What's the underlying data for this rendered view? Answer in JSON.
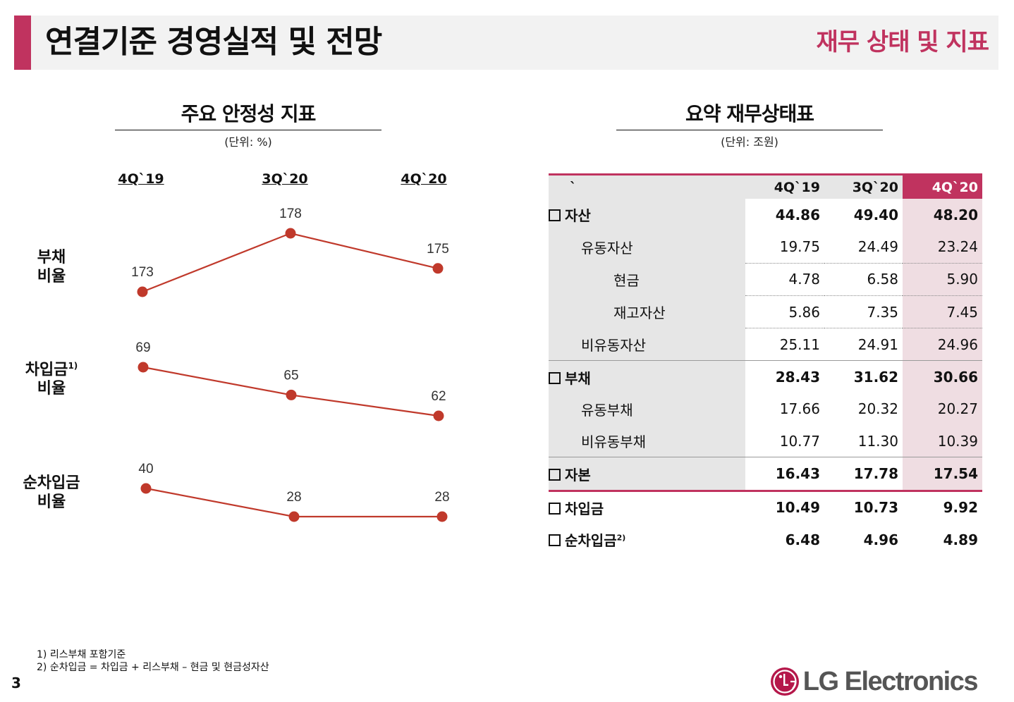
{
  "header": {
    "title": "연결기준 경영실적 및 전망",
    "section": "재무 상태 및 지표",
    "accent_color": "#c0335f"
  },
  "left_panel": {
    "title": "주요 안정성 지표",
    "unit": "(단위: %)",
    "periods": [
      "4Q`19",
      "3Q`20",
      "4Q`20"
    ]
  },
  "chart_data": {
    "type": "line",
    "title": "주요 안정성 지표",
    "unit": "(단위: %)",
    "categories": [
      "4Q`19",
      "3Q`20",
      "4Q`20"
    ],
    "series": [
      {
        "name": "부채 비율",
        "label_line1": "부채",
        "label_line2": "비율",
        "values": [
          173,
          178,
          175
        ]
      },
      {
        "name": "차입금 비율",
        "label_line1": "차입금",
        "label_sup": "1)",
        "label_line2": "비율",
        "values": [
          69,
          65,
          62
        ]
      },
      {
        "name": "순차입금 비율",
        "label_line1": "순차입금",
        "label_line2": "비율",
        "values": [
          40,
          28,
          28
        ]
      }
    ],
    "line_color": "#c0392b",
    "marker_color": "#c0392b"
  },
  "right_panel": {
    "title": "요약 재무상태표",
    "unit": "(단위: 조원)",
    "corner": "`",
    "columns": [
      "4Q`19",
      "3Q`20",
      "4Q`20"
    ],
    "rows": {
      "assets": {
        "label": "자산",
        "values": [
          "44.86",
          "49.40",
          "48.20"
        ]
      },
      "current_assets": {
        "label": "유동자산",
        "values": [
          "19.75",
          "24.49",
          "23.24"
        ]
      },
      "cash": {
        "label": "현금",
        "values": [
          "4.78",
          "6.58",
          "5.90"
        ]
      },
      "inventory": {
        "label": "재고자산",
        "values": [
          "5.86",
          "7.35",
          "7.45"
        ]
      },
      "noncurrent_assets": {
        "label": "비유동자산",
        "values": [
          "25.11",
          "24.91",
          "24.96"
        ]
      },
      "liabilities": {
        "label": "부채",
        "values": [
          "28.43",
          "31.62",
          "30.66"
        ]
      },
      "current_liab": {
        "label": "유동부채",
        "values": [
          "17.66",
          "20.32",
          "20.27"
        ]
      },
      "noncurrent_liab": {
        "label": "비유동부채",
        "values": [
          "10.77",
          "11.30",
          "10.39"
        ]
      },
      "equity": {
        "label": "자본",
        "values": [
          "16.43",
          "17.78",
          "17.54"
        ]
      },
      "borrowings": {
        "label": "차입금",
        "values": [
          "10.49",
          "10.73",
          "9.92"
        ]
      },
      "net_borrowings": {
        "label": "순차입금",
        "sup": "2)",
        "values": [
          "6.48",
          "4.96",
          "4.89"
        ]
      }
    }
  },
  "footnotes": [
    "1) 리스부채 포함기준",
    "2) 순차입금 = 차입금 + 리스부채 – 현금 및 현금성자산"
  ],
  "footer": {
    "page_number": "3",
    "logo_text": "LG Electronics",
    "logo_mark": "LG"
  }
}
